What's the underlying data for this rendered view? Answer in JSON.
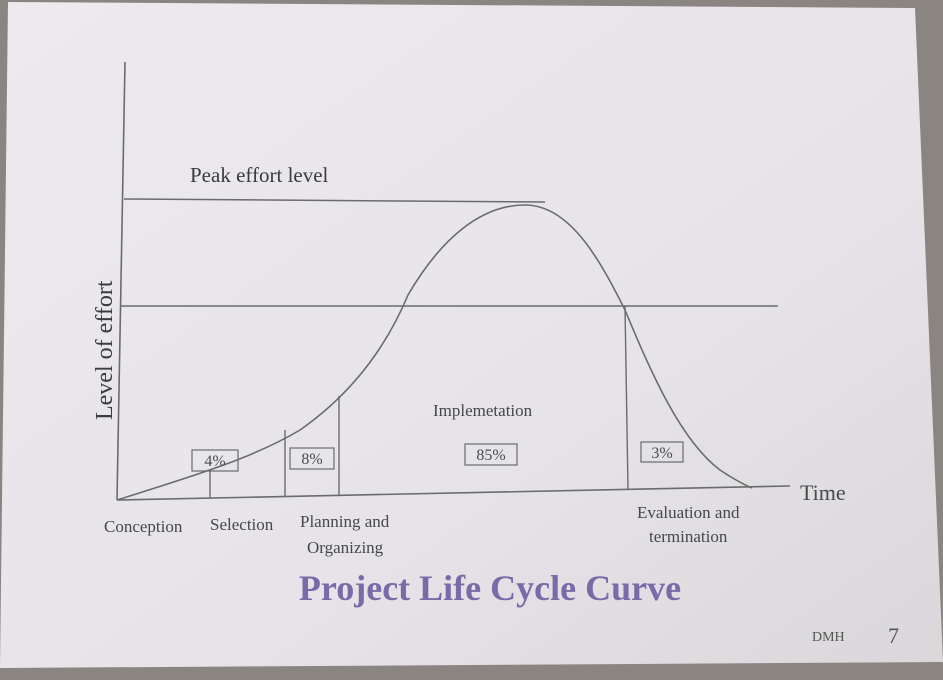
{
  "slide": {
    "y_axis_label": "Level of effort",
    "x_axis_label": "Time",
    "peak_label": "Peak effort level",
    "implementation_label": "Implemetation",
    "title": "Project Life Cycle Curve",
    "footer_author": "DMH",
    "page_number": "7"
  },
  "phases": {
    "conception": "Conception",
    "selection": "Selection",
    "planning_line1": "Planning and",
    "planning_line2": "Organizing",
    "evaluation_line1": "Evaluation and",
    "evaluation_line2": "termination"
  },
  "percentages": {
    "conception": "4%",
    "planning": "8%",
    "implementation": "85%",
    "evaluation": "3%"
  },
  "colors": {
    "title": "#7a6aa8",
    "lines": "#6b6b6b"
  }
}
